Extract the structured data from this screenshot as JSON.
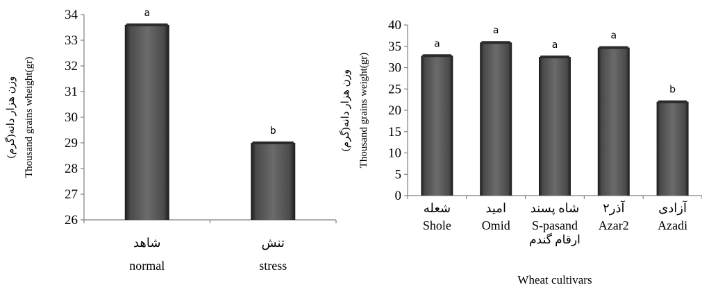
{
  "chart_data": [
    {
      "type": "bar",
      "categories": [
        {
          "fa": "شاهد",
          "en": "normal"
        },
        {
          "fa": "تنش",
          "en": "stress"
        }
      ],
      "values": [
        33.6,
        29.0
      ],
      "annotations": [
        "a",
        "b"
      ],
      "ylabel_fa": "وزن هزار دانه(گرم)",
      "ylabel_en": "Thousand grains wheight(gr)",
      "xlabel_fa": "",
      "xlabel_en": "",
      "ylim": [
        26,
        34
      ],
      "yticks": [
        26,
        27,
        28,
        29,
        30,
        31,
        32,
        33,
        34
      ],
      "grid": false,
      "bar_color": "#5a5a5a"
    },
    {
      "type": "bar",
      "categories": [
        {
          "fa": "شعله",
          "en": "Shole"
        },
        {
          "fa": "امید",
          "en": "Omid"
        },
        {
          "fa": "شاه پسند",
          "en": "S-pasand"
        },
        {
          "fa": "آذر۲",
          "en": "Azar2"
        },
        {
          "fa": "آزادی",
          "en": "Azadi"
        }
      ],
      "values": [
        32.8,
        35.9,
        32.5,
        34.7,
        22.0
      ],
      "annotations": [
        "a",
        "a",
        "a",
        "a",
        "b"
      ],
      "ylabel_fa": "وزن هزار دانه(گرم)",
      "ylabel_en": "Thousand grains weight(gr)",
      "xlabel_fa": "ارقام گندم",
      "xlabel_en": "Wheat cultivars",
      "ylim": [
        0,
        40
      ],
      "yticks": [
        0,
        5,
        10,
        15,
        20,
        25,
        30,
        35,
        40
      ],
      "grid": false,
      "bar_color": "#5a5a5a"
    }
  ]
}
